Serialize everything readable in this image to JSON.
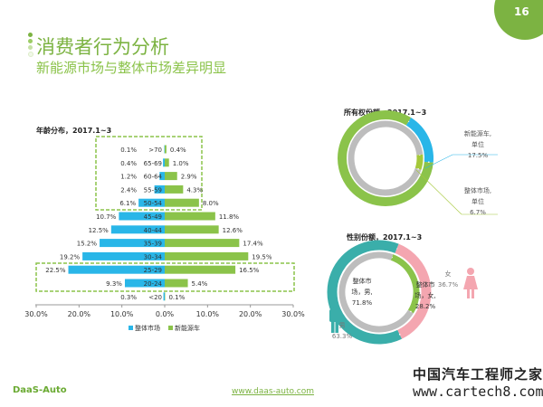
{
  "header": {
    "title": "消费者行为分析",
    "subtitle": "新能源市场与整体市场差异明显",
    "page_number": "16"
  },
  "footer": {
    "logo": "DaaS-Auto",
    "url": "www.daas-auto.com",
    "watermark_cn": "中国汽车工程师之家",
    "watermark_url": "www.cartech8.com"
  },
  "colors": {
    "brand": "#7cb342",
    "overall": "#29b6e8",
    "new_energy": "#8bc34a",
    "gray": "#bdbdbd",
    "male": "#3aaeaa",
    "female": "#f4a6b0"
  },
  "chart_data": [
    {
      "type": "bar",
      "title": "年龄分布，2017.1~3",
      "orientation": "horizontal-butterfly",
      "categories": [
        ">70",
        "65-69",
        "60-64",
        "55-59",
        "50-54",
        "45-49",
        "40-44",
        "35-39",
        "30-34",
        "25-29",
        "20-24",
        "<20"
      ],
      "series": [
        {
          "name": "整体市场",
          "values": [
            0.1,
            0.4,
            1.2,
            2.4,
            6.1,
            10.7,
            12.5,
            15.2,
            19.2,
            22.5,
            9.3,
            0.3
          ],
          "labels": [
            "0.1%",
            "0.4%",
            "1.2%",
            "2.4%",
            "6.1%",
            "10.7%",
            "12.5%",
            "15.2%",
            "19.2%",
            "22.5%",
            "9.3%",
            "0.3%"
          ]
        },
        {
          "name": "新能源车",
          "values": [
            0.4,
            1.0,
            2.9,
            4.3,
            8.0,
            11.8,
            12.6,
            17.4,
            19.5,
            16.5,
            5.4,
            0.1
          ],
          "labels": [
            "0.4%",
            "1.0%",
            "2.9%",
            "4.3%",
            "8.0%",
            "11.8%",
            "12.6%",
            "17.4%",
            "19.5%",
            "16.5%",
            "5.4%",
            "0.1%"
          ]
        }
      ],
      "xlim": [
        -30,
        30
      ],
      "xticks": [
        "30.0%",
        "20.0%",
        "10.0%",
        "0.0%",
        "10.0%",
        "20.0%",
        "30.0%"
      ],
      "legend": "bottom",
      "highlighted_groups": [
        [
          ">70",
          "50-54"
        ],
        [
          "25-29",
          "20-24"
        ]
      ]
    },
    {
      "type": "pie",
      "variant": "double-donut",
      "title": "所有权份额，2017.1~3",
      "rings": [
        {
          "ring": "outer",
          "slices": [
            {
              "label": "新能源车,单位",
              "value": 17.5
            },
            {
              "label": "",
              "value": 82.5
            }
          ]
        },
        {
          "ring": "inner",
          "slices": [
            {
              "label": "整体市场,单位",
              "value": 6.7
            },
            {
              "label": "",
              "value": 93.3
            }
          ]
        }
      ],
      "annotations": [
        {
          "lines": [
            "新能源车,",
            "单位",
            "17.5%"
          ]
        },
        {
          "lines": [
            "整体市场,",
            "单位",
            "6.7%"
          ]
        }
      ]
    },
    {
      "type": "pie",
      "variant": "double-donut",
      "title": "性别份额，2017.1~3",
      "rings": [
        {
          "ring": "outer",
          "slices": [
            {
              "label": "女",
              "value": 36.7
            },
            {
              "label": "男",
              "value": 63.3
            }
          ]
        },
        {
          "ring": "inner",
          "slices": [
            {
              "label": "整体市场，女",
              "value": 28.2
            },
            {
              "label": "整体市场，男",
              "value": 71.8
            }
          ]
        }
      ],
      "annotations": [
        {
          "lines": [
            "女",
            "36.7%"
          ]
        },
        {
          "lines": [
            "男",
            "63.3%"
          ]
        },
        {
          "lines": [
            "整体市",
            "场，男,",
            "71.8%"
          ]
        },
        {
          "lines": [
            "整体市",
            "场，女,",
            "28.2%"
          ]
        }
      ]
    }
  ]
}
